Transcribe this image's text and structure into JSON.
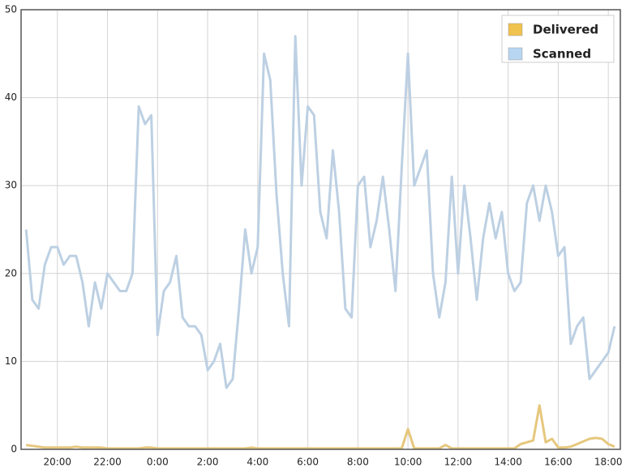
{
  "chart_data": {
    "type": "line",
    "x": [
      18.75,
      19,
      19.25,
      19.5,
      19.75,
      20,
      20.25,
      20.5,
      20.75,
      21,
      21.25,
      21.5,
      21.75,
      22,
      22.25,
      22.5,
      22.75,
      23,
      23.25,
      23.5,
      23.75,
      24,
      24.25,
      24.5,
      24.75,
      25,
      25.25,
      25.5,
      25.75,
      26,
      26.25,
      26.5,
      26.75,
      27,
      27.25,
      27.5,
      27.75,
      28,
      28.25,
      28.5,
      28.75,
      29,
      29.25,
      29.5,
      29.75,
      30,
      30.25,
      30.5,
      30.75,
      31,
      31.25,
      31.5,
      31.75,
      32,
      32.25,
      32.5,
      32.75,
      33,
      33.25,
      33.5,
      33.75,
      34,
      34.25,
      34.5,
      34.75,
      35,
      35.25,
      35.5,
      35.75,
      36,
      36.25,
      36.5,
      36.75,
      37,
      37.25,
      37.5,
      37.75,
      38,
      38.25,
      38.5,
      38.75,
      39,
      39.25,
      39.5,
      39.75,
      40,
      40.25,
      40.5,
      40.75,
      41,
      41.25,
      41.5,
      41.75,
      42,
      42.25
    ],
    "series": [
      {
        "name": "Delivered",
        "color": "#f0c24e",
        "line_color": "#e6c77d",
        "values": [
          0.5,
          0.4,
          0.3,
          0.2,
          0.2,
          0.2,
          0.2,
          0.2,
          0.3,
          0.2,
          0.2,
          0.2,
          0.2,
          0.1,
          0.1,
          0.1,
          0.1,
          0.1,
          0.1,
          0.2,
          0.2,
          0.1,
          0.1,
          0.1,
          0.1,
          0.1,
          0.1,
          0.1,
          0.1,
          0.1,
          0.1,
          0.1,
          0.1,
          0.1,
          0.1,
          0.1,
          0.2,
          0.1,
          0.1,
          0.1,
          0.1,
          0.1,
          0.1,
          0.1,
          0.1,
          0.1,
          0.1,
          0.1,
          0.1,
          0.1,
          0.1,
          0.1,
          0.1,
          0.1,
          0.1,
          0.1,
          0.1,
          0.1,
          0.1,
          0.1,
          0.1,
          2.3,
          0.1,
          0.1,
          0.1,
          0.1,
          0.1,
          0.5,
          0.1,
          0.1,
          0.1,
          0.1,
          0.1,
          0.1,
          0.1,
          0.1,
          0.1,
          0.1,
          0.1,
          0.6,
          0.8,
          1.0,
          5.0,
          0.8,
          1.2,
          0.2,
          0.2,
          0.3,
          0.6,
          0.9,
          1.2,
          1.3,
          1.2,
          0.6,
          0.3
        ]
      },
      {
        "name": "Scanned",
        "color": "#b8d6f2",
        "line_color": "#bdd0e3",
        "values": [
          25,
          17,
          16,
          21,
          23,
          23,
          21,
          22,
          22,
          19,
          14,
          19,
          16,
          20,
          19,
          18,
          18,
          20,
          39,
          37,
          38,
          13,
          18,
          19,
          22,
          15,
          14,
          14,
          13,
          9,
          10,
          12,
          7,
          8,
          16,
          25,
          20,
          23,
          45,
          42,
          29,
          20,
          14,
          47,
          30,
          39,
          38,
          27,
          24,
          34,
          27,
          16,
          15,
          30,
          31,
          23,
          26,
          31,
          25,
          18,
          32,
          45,
          30,
          32,
          34,
          20,
          15,
          19,
          31,
          20,
          30,
          24,
          17,
          24,
          28,
          24,
          27,
          20,
          18,
          19,
          28,
          30,
          26,
          30,
          27,
          22,
          23,
          12,
          14,
          15,
          8,
          9,
          10,
          11,
          14
        ]
      }
    ],
    "xlim": [
      18.55,
      42.48
    ],
    "xticks": [
      {
        "value": 20,
        "label": "20:00"
      },
      {
        "value": 22,
        "label": "22:00"
      },
      {
        "value": 24,
        "label": "0:00"
      },
      {
        "value": 26,
        "label": "2:00"
      },
      {
        "value": 28,
        "label": "4:00"
      },
      {
        "value": 30,
        "label": "6:00"
      },
      {
        "value": 32,
        "label": "8:00"
      },
      {
        "value": 34,
        "label": "10:00"
      },
      {
        "value": 36,
        "label": "12:00"
      },
      {
        "value": 38,
        "label": "14:00"
      },
      {
        "value": 40,
        "label": "16:00"
      },
      {
        "value": 42,
        "label": "18:00"
      }
    ],
    "ylim": [
      0,
      50
    ],
    "yticks": [
      0,
      10,
      20,
      30,
      40,
      50
    ],
    "grid": true,
    "legend": "top-right"
  }
}
